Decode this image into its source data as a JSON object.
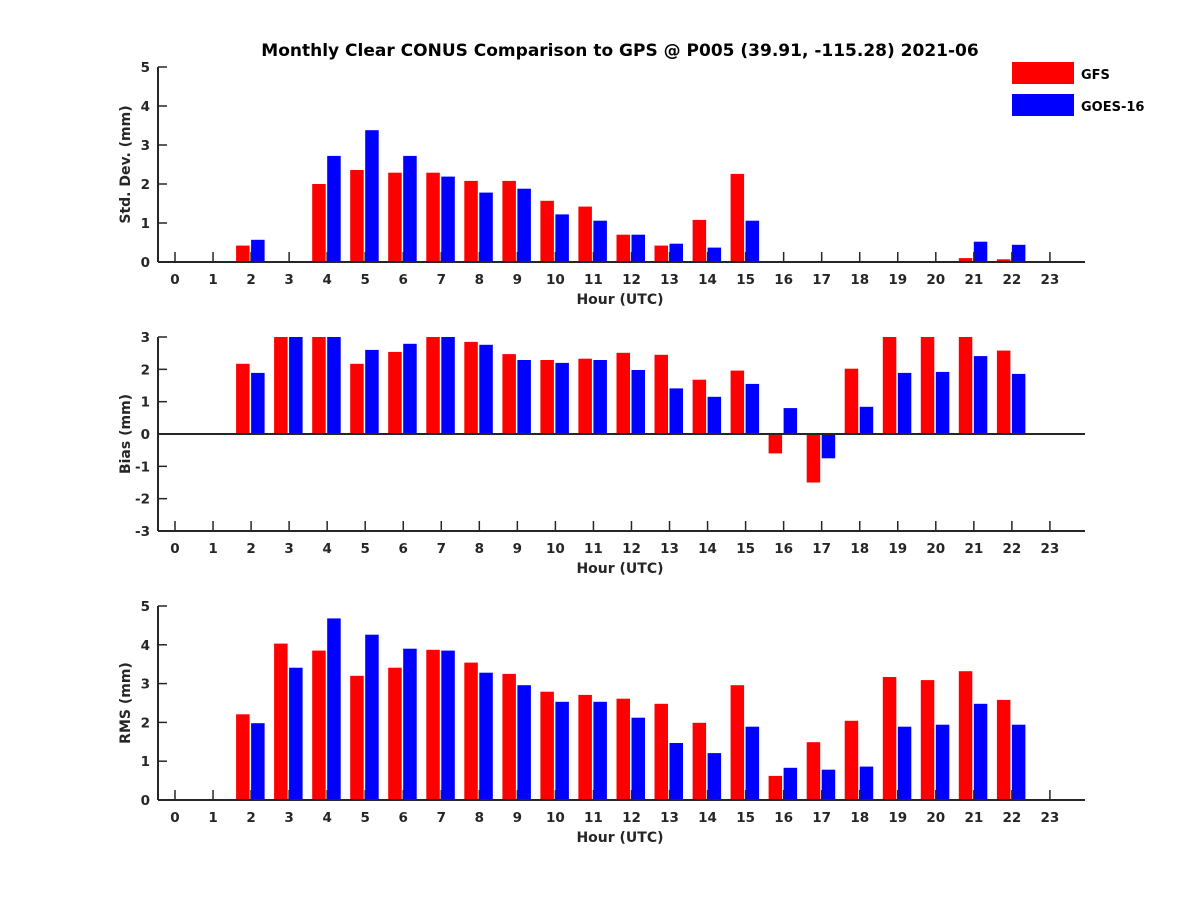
{
  "chart_data": {
    "type": "bar",
    "title": "Monthly Clear CONUS Comparison to GPS @ P005 (39.91, -115.28) 2021-06",
    "legend": {
      "placement": "top-right",
      "entries": [
        {
          "name": "GFS",
          "color": "#ff0000"
        },
        {
          "name": "GOES-16",
          "color": "#0000ff"
        }
      ]
    },
    "categories": [
      "0",
      "1",
      "2",
      "3",
      "4",
      "5",
      "6",
      "7",
      "8",
      "9",
      "10",
      "11",
      "12",
      "13",
      "14",
      "15",
      "16",
      "17",
      "18",
      "19",
      "20",
      "21",
      "22",
      "23"
    ],
    "panels": [
      {
        "id": "stddev",
        "ylabel": "Std. Dev. (mm)",
        "xlabel": "Hour (UTC)",
        "ylim": [
          0,
          5
        ],
        "yticks": [
          0,
          1,
          2,
          3,
          4,
          5
        ],
        "grid": false,
        "series": [
          {
            "name": "GFS",
            "values": [
              null,
              null,
              0.42,
              null,
              2.0,
              2.36,
              2.29,
              2.29,
              2.08,
              2.08,
              1.57,
              1.42,
              0.7,
              0.42,
              1.08,
              2.26,
              null,
              null,
              null,
              null,
              null,
              0.1,
              0.07,
              null
            ]
          },
          {
            "name": "GOES-16",
            "values": [
              null,
              null,
              0.57,
              null,
              2.72,
              3.38,
              2.72,
              2.19,
              1.78,
              1.88,
              1.22,
              1.06,
              0.7,
              0.47,
              0.37,
              1.06,
              null,
              null,
              null,
              null,
              null,
              0.52,
              0.44,
              null
            ]
          }
        ]
      },
      {
        "id": "bias",
        "ylabel": "Bias (mm)",
        "xlabel": "Hour (UTC)",
        "ylim": [
          -3,
          3
        ],
        "yticks": [
          -3,
          -2,
          -1,
          0,
          1,
          2,
          3
        ],
        "grid": false,
        "series": [
          {
            "name": "GFS",
            "values": [
              null,
              null,
              2.17,
              3.0,
              3.0,
              2.17,
              2.54,
              3.0,
              2.85,
              2.47,
              2.29,
              2.33,
              2.51,
              2.45,
              1.68,
              1.96,
              -0.6,
              -1.5,
              2.02,
              3.0,
              3.0,
              3.0,
              2.58,
              null
            ]
          },
          {
            "name": "GOES-16",
            "values": [
              null,
              null,
              1.89,
              3.0,
              3.0,
              2.6,
              2.79,
              3.0,
              2.76,
              2.29,
              2.2,
              2.29,
              1.98,
              1.41,
              1.15,
              1.55,
              0.8,
              -0.75,
              0.84,
              1.89,
              1.92,
              2.41,
              1.86,
              null
            ]
          }
        ]
      },
      {
        "id": "rms",
        "ylabel": "RMS (mm)",
        "xlabel": "Hour (UTC)",
        "ylim": [
          0,
          5
        ],
        "yticks": [
          0,
          1,
          2,
          3,
          4,
          5
        ],
        "grid": false,
        "series": [
          {
            "name": "GFS",
            "values": [
              null,
              null,
              2.21,
              4.03,
              3.85,
              3.2,
              3.41,
              3.87,
              3.54,
              3.25,
              2.79,
              2.71,
              2.61,
              2.48,
              1.99,
              2.96,
              0.62,
              1.49,
              2.04,
              3.17,
              3.09,
              3.32,
              2.58,
              null
            ]
          },
          {
            "name": "GOES-16",
            "values": [
              null,
              null,
              1.98,
              3.41,
              4.68,
              4.26,
              3.9,
              3.85,
              3.28,
              2.96,
              2.53,
              2.53,
              2.12,
              1.47,
              1.21,
              1.89,
              0.83,
              0.78,
              0.86,
              1.89,
              1.94,
              2.48,
              1.94,
              null
            ]
          }
        ]
      }
    ]
  }
}
